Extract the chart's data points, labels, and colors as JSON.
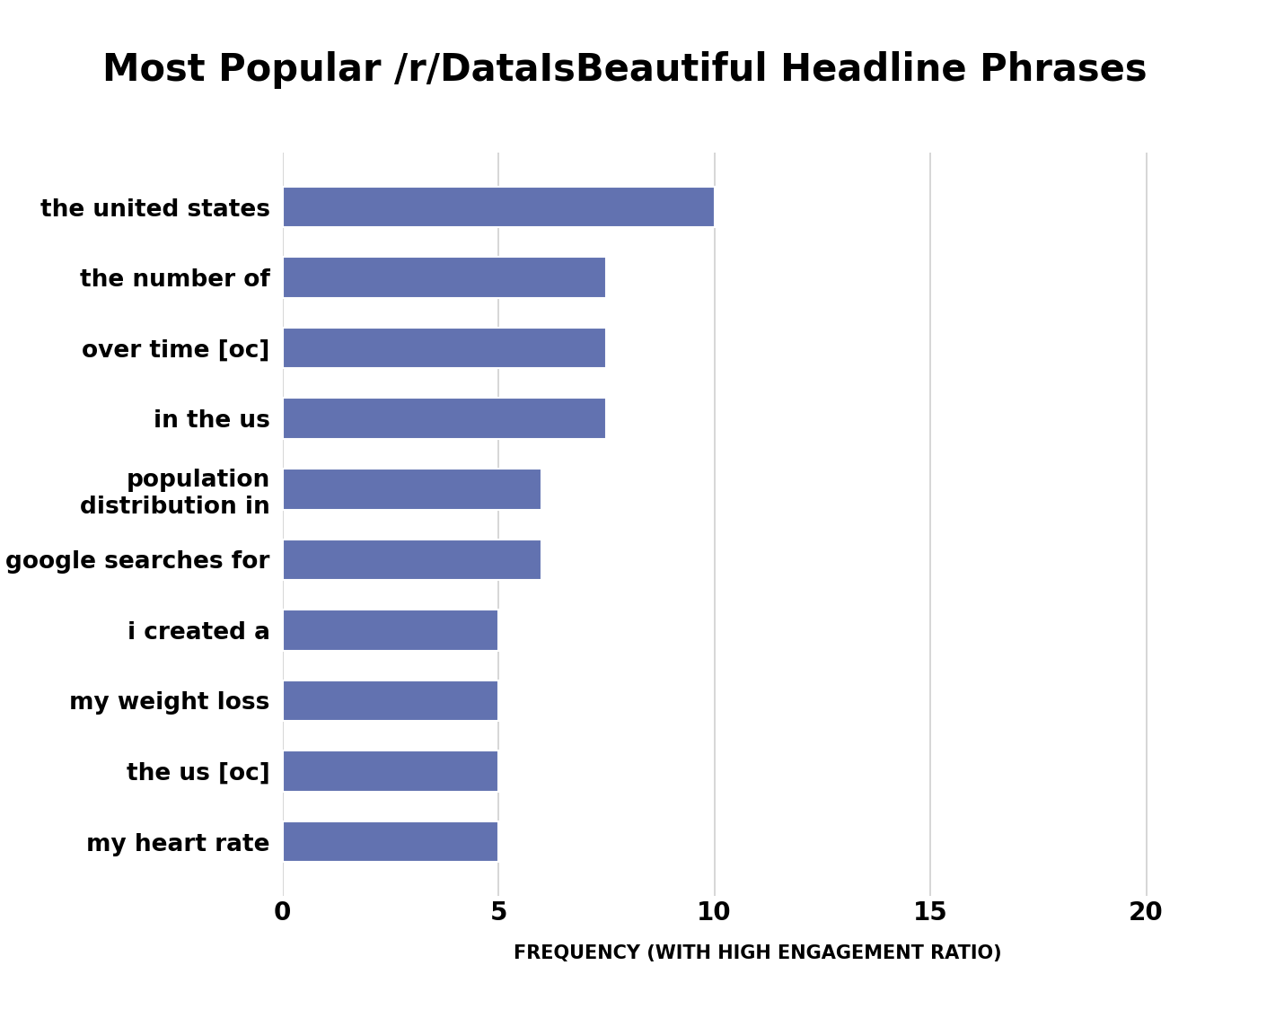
{
  "title": "Most Popular /r/DataIsBeautiful Headline Phrases",
  "categories": [
    "my heart rate",
    "the us [oc]",
    "my weight loss",
    "i created a",
    "google searches for",
    "population\ndistribution in",
    "in the us",
    "over time [oc]",
    "the number of",
    "the united states"
  ],
  "values": [
    5,
    5,
    5,
    5,
    6,
    6,
    7.5,
    7.5,
    7.5,
    10
  ],
  "bar_color": "#6272b0",
  "xlabel": "FREQUENCY (WITH HIGH ENGAGEMENT RATIO)",
  "xlim": [
    0,
    22
  ],
  "xticks": [
    0,
    5,
    10,
    15,
    20
  ],
  "grid_color": "#d0d0d0",
  "background_color": "#ffffff",
  "title_fontsize": 30,
  "xlabel_fontsize": 15,
  "tick_fontsize": 20,
  "label_fontsize": 19
}
